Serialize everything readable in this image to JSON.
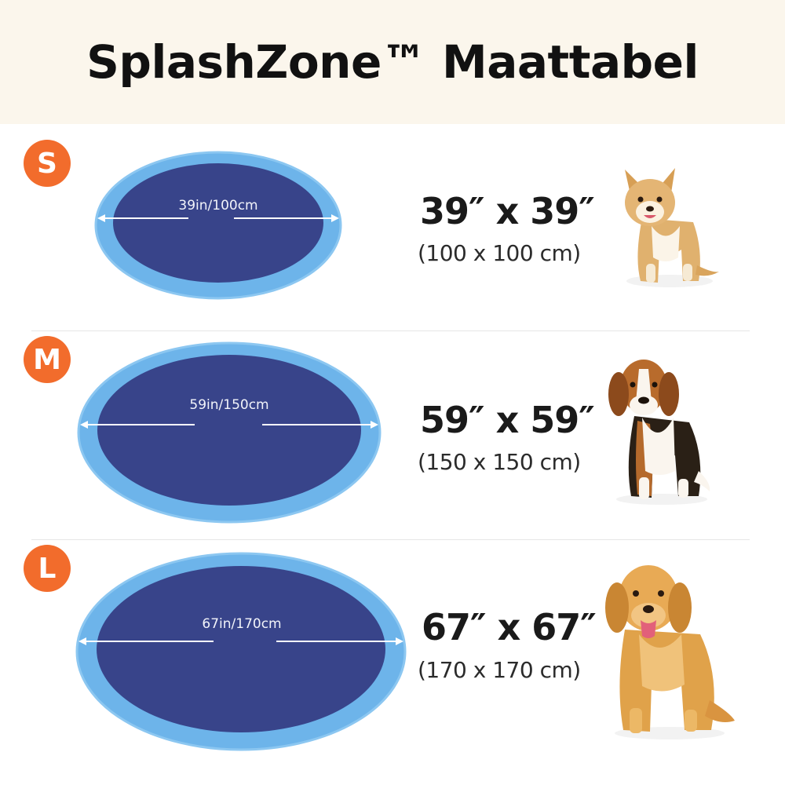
{
  "title": "SplashZone™ Maattabel",
  "colors": {
    "header_bg": "#fbf6ec",
    "badge": "#f26c2c",
    "pool_ring": "#6db4ea",
    "pool_water": "#38448a"
  },
  "sizes": [
    {
      "badge": "S",
      "pool_label": "39in/100cm",
      "dimension": "39″ x 39″",
      "metric": "(100 x 100 cm)",
      "dog": "small-dog-icon"
    },
    {
      "badge": "M",
      "pool_label": "59in/150cm",
      "dimension": "59″ x 59″",
      "metric": "(150 x 150 cm)",
      "dog": "beagle-icon"
    },
    {
      "badge": "L",
      "pool_label": "67in/170cm",
      "dimension": "67″ x 67″",
      "metric": "(170 x 170 cm)",
      "dog": "golden-retriever-icon"
    }
  ]
}
